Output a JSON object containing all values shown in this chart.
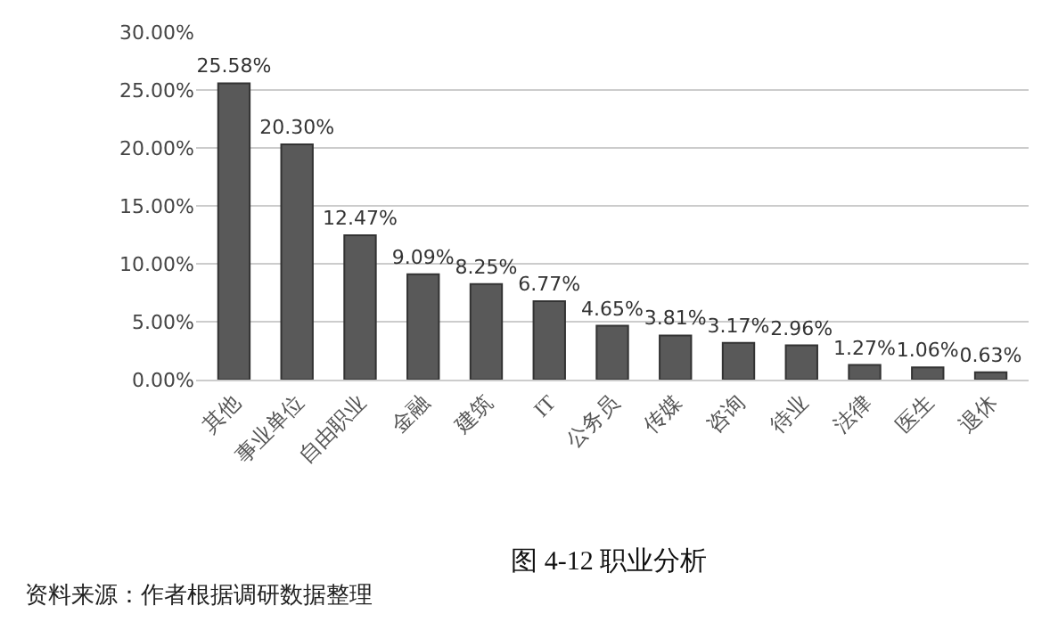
{
  "chart_data": {
    "type": "bar",
    "title": "图 4-12 职业分析",
    "categories": [
      "其他",
      "事业单位",
      "自由职业",
      "金融",
      "建筑",
      "IT",
      "公务员",
      "传媒",
      "咨询",
      "待业",
      "法律",
      "医生",
      "退休"
    ],
    "values": [
      25.58,
      20.3,
      12.47,
      9.09,
      8.25,
      6.77,
      4.65,
      3.81,
      3.17,
      2.96,
      1.27,
      1.06,
      0.63
    ],
    "value_labels": [
      "25.58%",
      "20.30%",
      "12.47%",
      "9.09%",
      "8.25%",
      "6.77%",
      "4.65%",
      "3.81%",
      "3.17%",
      "2.96%",
      "1.27%",
      "1.06%",
      "0.63%"
    ],
    "color": "#595959",
    "ylim": [
      0,
      30
    ],
    "yticks": [
      {
        "value": 0,
        "label": "0.00%"
      },
      {
        "value": 5,
        "label": "5.00%"
      },
      {
        "value": 10,
        "label": "10.00%"
      },
      {
        "value": 15,
        "label": "15.00%"
      },
      {
        "value": 20,
        "label": "20.00%"
      },
      {
        "value": 25,
        "label": "25.00%"
      },
      {
        "value": 30,
        "label": "30.00%"
      }
    ],
    "grid": "y",
    "annotations": [
      "资料来源：作者根据调研数据整理"
    ]
  }
}
